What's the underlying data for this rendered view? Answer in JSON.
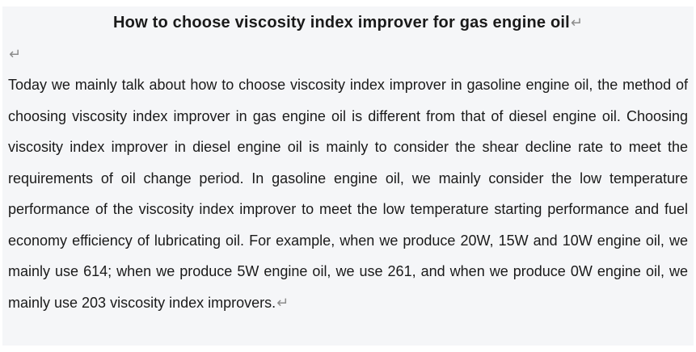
{
  "document": {
    "title": "How to choose viscosity index improver for gas engine oil",
    "paragraph": "Today we mainly talk about how to choose viscosity index improver in gasoline engine oil, the method of choosing viscosity index improver in gas engine oil is different from that of diesel engine oil. Choosing viscosity index improver in diesel engine oil is mainly to consider the shear decline rate to meet the requirements of oil change period. In gasoline engine oil, we mainly consider the low temperature performance of the viscosity index improver to meet the low temperature starting performance and fuel economy efficiency of lubricating oil. For example, when we produce 20W, 15W and 10W engine oil, we mainly use 614; when we produce 5W engine oil, we use 261, and when we produce 0W engine oil, we mainly use 203 viscosity index improvers.",
    "return_mark_glyph": "↵"
  },
  "colors": {
    "page_background": "#ffffff",
    "content_background": "#f5f6f8",
    "text": "#1a1a1a",
    "formatting_mark": "#8c8c8c"
  }
}
